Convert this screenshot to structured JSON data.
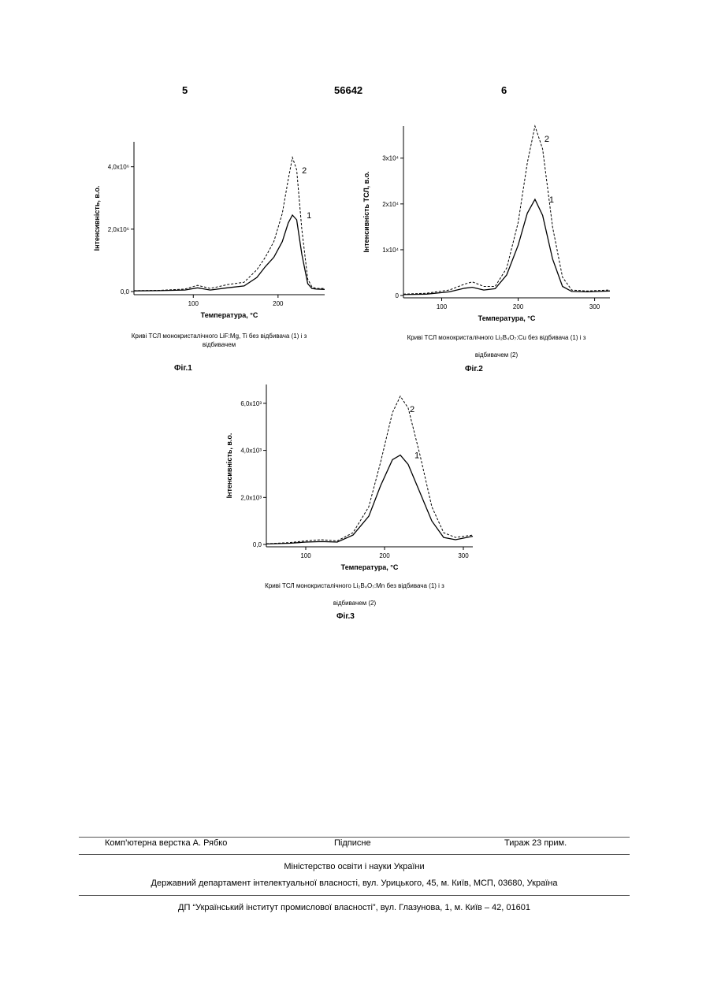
{
  "header": {
    "left": "5",
    "center": "56642",
    "right": "6"
  },
  "figures": [
    {
      "id": "fig1",
      "label": "Фіг.1",
      "caption_line1": "Криві ТСЛ монокристалічного LiF:Mg, Ti без відбивача (1) і з",
      "caption_line2": "відбивачем",
      "chart_data": {
        "type": "line",
        "xlabel": "Температура, °C",
        "ylabel": "Інтенсивність, в.о.",
        "xlim": [
          30,
          255
        ],
        "ylim": [
          -0.1,
          4.8
        ],
        "xticks": [
          {
            "v": 100,
            "label": "100"
          },
          {
            "v": 200,
            "label": "200"
          }
        ],
        "yticks": [
          {
            "v": 0,
            "label": "0,0"
          },
          {
            "v": 2,
            "label": "2,0x10⁶"
          },
          {
            "v": 4,
            "label": "4,0x10⁶"
          }
        ],
        "series": [
          {
            "name": "1",
            "dash": false,
            "x": [
              30,
              60,
              90,
              105,
              120,
              140,
              160,
              175,
              185,
              195,
              205,
              212,
              217,
              222,
              228,
              235,
              240,
              245,
              255
            ],
            "y": [
              0.02,
              0.03,
              0.05,
              0.12,
              0.05,
              0.12,
              0.18,
              0.45,
              0.8,
              1.1,
              1.6,
              2.2,
              2.45,
              2.3,
              1.2,
              0.25,
              0.1,
              0.08,
              0.07
            ]
          },
          {
            "name": "2",
            "dash": true,
            "x": [
              30,
              60,
              90,
              105,
              120,
              140,
              160,
              175,
              185,
              195,
              205,
              212,
              217,
              222,
              228,
              235,
              240,
              245,
              255
            ],
            "y": [
              0.03,
              0.04,
              0.08,
              0.2,
              0.1,
              0.22,
              0.3,
              0.7,
              1.1,
              1.6,
              2.5,
              3.6,
              4.3,
              3.9,
              2.0,
              0.4,
              0.15,
              0.1,
              0.1
            ]
          }
        ]
      }
    },
    {
      "id": "fig2",
      "label": "Фіг.2",
      "caption_line1": "Криві ТСЛ монокристалічного Li₂B₄O₇:Cu без відбивача (1) і з",
      "caption_line2": "відбивачем (2)",
      "chart_data": {
        "type": "line",
        "xlabel": "Температура, °C",
        "ylabel": "Інтенсивність ТСЛ, в.о.",
        "xlim": [
          50,
          320
        ],
        "ylim": [
          -0.05,
          3.7
        ],
        "xticks": [
          {
            "v": 100,
            "label": "100"
          },
          {
            "v": 200,
            "label": "200"
          },
          {
            "v": 300,
            "label": "300"
          }
        ],
        "yticks": [
          {
            "v": 0,
            "label": "0"
          },
          {
            "v": 1,
            "label": "1x10⁴"
          },
          {
            "v": 2,
            "label": "2x10⁴"
          },
          {
            "v": 3,
            "label": "3x10⁴"
          }
        ],
        "series": [
          {
            "name": "1",
            "dash": false,
            "x": [
              50,
              80,
              110,
              130,
              140,
              155,
              170,
              185,
              200,
              212,
              222,
              232,
              245,
              258,
              270,
              290,
              320
            ],
            "y": [
              0.02,
              0.03,
              0.08,
              0.16,
              0.18,
              0.12,
              0.15,
              0.45,
              1.1,
              1.8,
              2.1,
              1.75,
              0.8,
              0.2,
              0.09,
              0.08,
              0.1
            ]
          },
          {
            "name": "2",
            "dash": true,
            "x": [
              50,
              80,
              110,
              130,
              140,
              155,
              170,
              185,
              200,
              212,
              222,
              232,
              245,
              258,
              270,
              290,
              320
            ],
            "y": [
              0.03,
              0.05,
              0.12,
              0.25,
              0.3,
              0.2,
              0.2,
              0.6,
              1.6,
              2.9,
              3.7,
              3.2,
              1.5,
              0.4,
              0.12,
              0.1,
              0.12
            ]
          }
        ]
      }
    },
    {
      "id": "fig3",
      "label": "Фіг.3",
      "caption_line1": "Криві ТСЛ монокристалічного Li₂B₄O₇:Mn без відбивача (1) і з",
      "caption_line2": "відбивачем (2)",
      "chart_data": {
        "type": "line",
        "xlabel": "Температура, °C",
        "ylabel": "Інтенсивність, в.о.",
        "xlim": [
          50,
          312
        ],
        "ylim": [
          -0.1,
          6.8
        ],
        "xticks": [
          {
            "v": 100,
            "label": "100"
          },
          {
            "v": 200,
            "label": "200"
          },
          {
            "v": 300,
            "label": "300"
          }
        ],
        "yticks": [
          {
            "v": 0,
            "label": "0,0"
          },
          {
            "v": 2,
            "label": "2,0x10³"
          },
          {
            "v": 4,
            "label": "4,0x10³"
          },
          {
            "v": 6,
            "label": "6,0x10³"
          }
        ],
        "series": [
          {
            "name": "1",
            "dash": false,
            "x": [
              50,
              80,
              100,
              120,
              140,
              160,
              180,
              195,
              210,
              220,
              230,
              245,
              260,
              275,
              290,
              312
            ],
            "y": [
              0.02,
              0.05,
              0.1,
              0.12,
              0.1,
              0.4,
              1.2,
              2.5,
              3.6,
              3.8,
              3.4,
              2.2,
              1.0,
              0.3,
              0.2,
              0.35
            ]
          },
          {
            "name": "2",
            "dash": true,
            "x": [
              50,
              80,
              100,
              120,
              140,
              160,
              180,
              195,
              210,
              220,
              230,
              245,
              260,
              275,
              290,
              312
            ],
            "y": [
              0.03,
              0.08,
              0.15,
              0.2,
              0.15,
              0.5,
              1.6,
              3.5,
              5.6,
              6.3,
              5.8,
              3.8,
              1.6,
              0.5,
              0.3,
              0.4
            ]
          }
        ]
      }
    }
  ],
  "footer": {
    "row1_left": "Комп’ютерна верстка А. Рябко",
    "row1_center": "Підписне",
    "row1_right": "Тираж 23 прим.",
    "line2": "Міністерство освіти і науки України",
    "line3": "Державний департамент інтелектуальної власності, вул. Урицького, 45, м. Київ, МСП, 03680, Україна",
    "line4": "ДП “Український інститут промислової власності”, вул. Глазунова, 1, м. Київ – 42, 01601"
  }
}
